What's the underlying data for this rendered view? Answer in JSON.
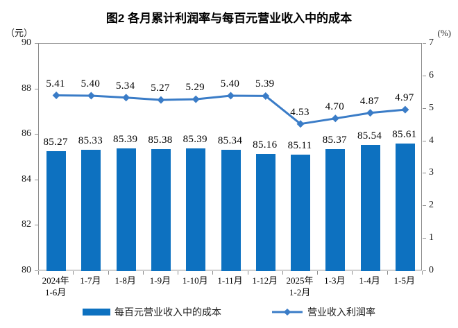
{
  "title": "图2 各月累计利润率与每百元营业收入中的成本",
  "left_axis_unit": "（元）",
  "right_axis_unit": "(%)",
  "chart_data": {
    "type": "combo-bar-line",
    "title": "图2 各月累计利润率与每百元营业收入中的成本",
    "grid": false,
    "legend_position": "bottom",
    "categories": [
      [
        "2024年",
        "1-6月"
      ],
      [
        "1-7月"
      ],
      [
        "1-8月"
      ],
      [
        "1-9月"
      ],
      [
        "1-10月"
      ],
      [
        "1-11月"
      ],
      [
        "1-12月"
      ],
      [
        "2025年",
        "1-2月"
      ],
      [
        "1-3月"
      ],
      [
        "1-4月"
      ],
      [
        "1-5月"
      ]
    ],
    "series": [
      {
        "name": "每百元营业收入中的成本",
        "type": "bar",
        "axis": "left",
        "color": "#0d71c0",
        "values": [
          85.27,
          85.33,
          85.39,
          85.38,
          85.39,
          85.34,
          85.16,
          85.11,
          85.37,
          85.54,
          85.61
        ],
        "labels": [
          "85.27",
          "85.33",
          "85.39",
          "85.38",
          "85.39",
          "85.34",
          "85.16",
          "85.11",
          "85.37",
          "85.54",
          "85.61"
        ]
      },
      {
        "name": "营业收入利润率",
        "type": "line",
        "axis": "right",
        "color": "#3a7cc7",
        "values": [
          5.41,
          5.4,
          5.34,
          5.27,
          5.29,
          5.4,
          5.39,
          4.53,
          4.7,
          4.87,
          4.97
        ],
        "labels": [
          "5.41",
          "5.40",
          "5.34",
          "5.27",
          "5.29",
          "5.40",
          "5.39",
          "4.53",
          "4.70",
          "4.87",
          "4.97"
        ]
      }
    ],
    "left_axis": {
      "unit": "（元）",
      "min": 80,
      "max": 90,
      "step": 2,
      "tick_labels": [
        "90",
        "88",
        "86",
        "84",
        "82",
        "80"
      ]
    },
    "right_axis": {
      "unit": "(%)",
      "min": 0,
      "max": 7,
      "step": 1,
      "tick_labels": [
        "7",
        "6",
        "5",
        "4",
        "3",
        "2",
        "1",
        "0"
      ]
    }
  },
  "legend": {
    "items": [
      {
        "label": "每百元营业收入中的成本",
        "marker": "bar-swatch"
      },
      {
        "label": "营业收入利润率",
        "marker": "line-diamond-swatch"
      }
    ]
  }
}
